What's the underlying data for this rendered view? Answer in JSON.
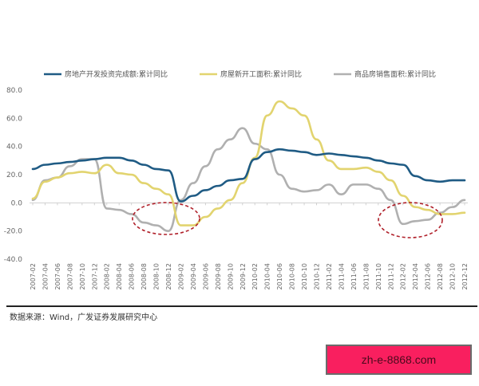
{
  "chart_data": {
    "type": "line",
    "title": "",
    "xlabel": "",
    "ylabel": "",
    "ylim": [
      -40,
      80
    ],
    "yticks": [
      "80.0",
      "60.0",
      "40.0",
      "20.0",
      "0.0",
      "-20.0",
      "-40.0"
    ],
    "grid": false,
    "legend_position": "top",
    "categories": [
      "2007-02",
      "2007-04",
      "2007-06",
      "2007-08",
      "2007-10",
      "2007-12",
      "2008-02",
      "2008-04",
      "2008-06",
      "2008-08",
      "2008-10",
      "2008-12",
      "2009-02",
      "2009-04",
      "2009-06",
      "2009-08",
      "2009-10",
      "2009-12",
      "2010-02",
      "2010-04",
      "2010-06",
      "2010-08",
      "2010-10",
      "2010-12",
      "2011-02",
      "2011-04",
      "2011-06",
      "2011-08",
      "2011-10",
      "2011-12",
      "2012-02",
      "2012-04",
      "2012-06",
      "2012-08",
      "2012-10",
      "2012-12"
    ],
    "series": [
      {
        "name": "房地产开发投资完成额:累计同比",
        "color": "#1f5b84",
        "values": [
          24,
          27,
          28,
          29,
          30,
          31,
          32,
          32,
          30,
          27,
          24,
          23,
          1,
          5,
          9,
          12,
          16,
          17,
          31,
          36,
          38,
          37,
          36,
          34,
          35,
          34,
          33,
          32,
          30,
          28,
          27,
          19,
          16,
          15,
          16,
          16
        ]
      },
      {
        "name": "房屋新开工面积:累计同比",
        "color": "#e2d46f",
        "values": [
          3,
          15,
          18,
          21,
          22,
          21,
          27,
          21,
          20,
          14,
          10,
          6,
          -16,
          -16,
          -10,
          -4,
          2,
          14,
          32,
          62,
          72,
          67,
          62,
          45,
          30,
          24,
          24,
          25,
          22,
          16,
          5,
          -3,
          -5,
          -8,
          -8,
          -7
        ]
      },
      {
        "name": "商品房销售面积:累计同比",
        "color": "#b0b0b0",
        "values": [
          2,
          16,
          18,
          26,
          31,
          31,
          -4,
          -5,
          -8,
          -14,
          -16,
          -20,
          2,
          14,
          26,
          38,
          45,
          53,
          42,
          38,
          20,
          10,
          8,
          9,
          13,
          6,
          13,
          13,
          10,
          2,
          -15,
          -13,
          -12,
          -7,
          -3,
          2
        ]
      }
    ],
    "annotations": [
      {
        "type": "dashed-ellipse",
        "color": "#b0202a",
        "around": "2008-09 to 2009-05, near -15"
      },
      {
        "type": "dashed-ellipse",
        "color": "#b0202a",
        "around": "2011-12 to 2012-06, near -10"
      }
    ]
  },
  "legend": {
    "items": [
      {
        "label": "房地产开发投资完成额:累计同比",
        "color": "#1f5b84"
      },
      {
        "label": "房屋新开工面积:累计同比",
        "color": "#e2d46f"
      },
      {
        "label": "商品房销售面积:累计同比",
        "color": "#b0b0b0"
      }
    ]
  },
  "source": "数据来源：Wind，广发证券发展研究中心",
  "watermark": "zh-e-8868.com"
}
